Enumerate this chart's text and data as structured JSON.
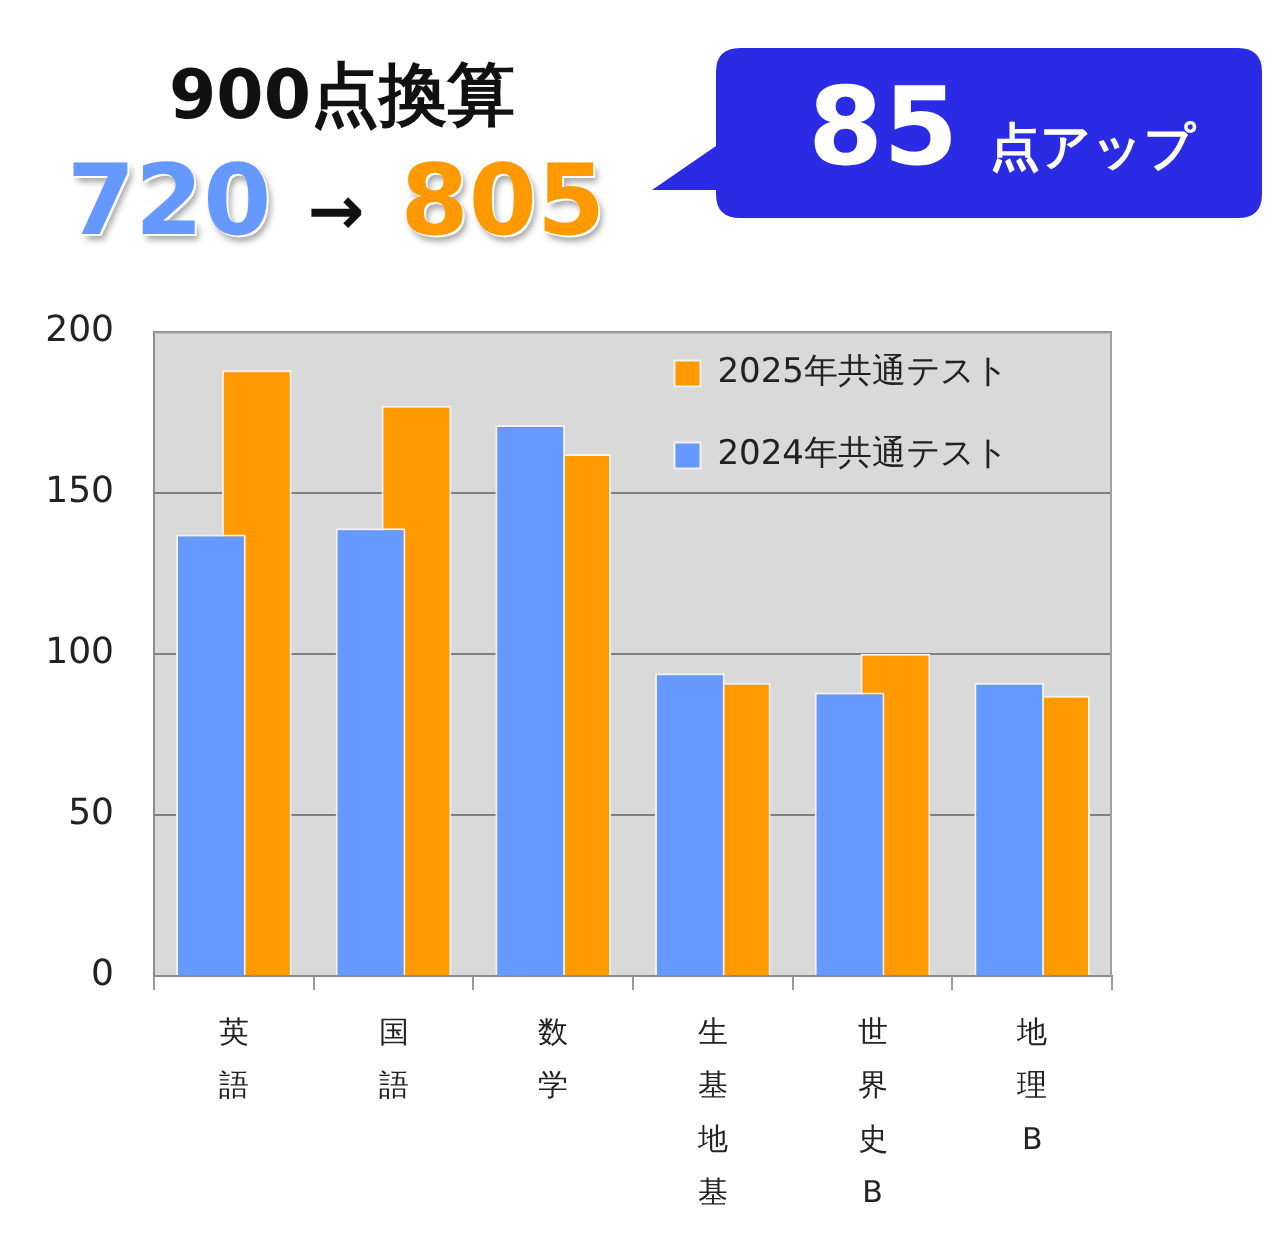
{
  "chart_data": {
    "type": "bar",
    "title": "900点換算",
    "subtitle": "720 → 805",
    "annotations": [
      "85 点アップ"
    ],
    "categories": [
      "英語",
      "国語",
      "数学",
      "生基地基",
      "世界史B",
      "地理B"
    ],
    "series": [
      {
        "name": "2024年共通テスト",
        "color": "#6699ff",
        "values": [
          137,
          139,
          171,
          94,
          88,
          91
        ]
      },
      {
        "name": "2025年共通テスト",
        "color": "#ff9900",
        "values": [
          188,
          177,
          162,
          91,
          100,
          87
        ]
      }
    ],
    "ylim": [
      0,
      200
    ],
    "yticks": [
      0,
      50,
      100,
      150,
      200
    ],
    "grid": "y",
    "legend": "top right"
  }
}
